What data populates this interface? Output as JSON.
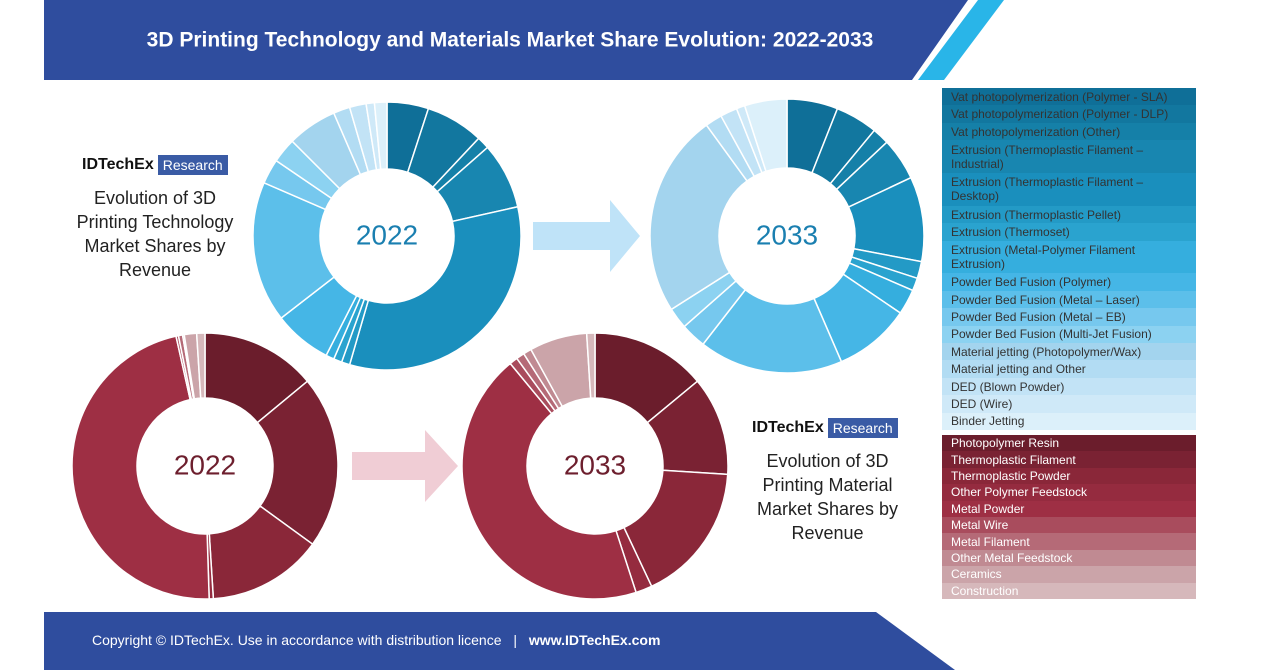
{
  "header": {
    "title": "3D Printing Technology and Materials Market Share Evolution: 2022-2033"
  },
  "footer": {
    "notice": "Copyright © IDTechEx. Use in accordance with distribution licence",
    "separator": "|",
    "url": "www.IDTechEx.com"
  },
  "chart_data": [
    {
      "type": "donut",
      "brand": "IDTechEx",
      "brand_tag": "Research",
      "caption": "Evolution of 3D Printing Technology Market Shares by Revenue",
      "categories": [
        "Vat photopolymerization (Polymer - SLA)",
        "Vat photopolymerization (Polymer - DLP)",
        "Vat photopolymerization (Other)",
        "Extrusion (Thermoplastic Filament – Industrial)",
        "Extrusion (Thermoplastic Filament – Desktop)",
        "Extrusion (Thermoplastic Pellet)",
        "Extrusion (Thermoset)",
        "Extrusion (Metal-Polymer Filament Extrusion)",
        "Powder Bed Fusion (Polymer)",
        "Powder Bed Fusion  (Metal – Laser)",
        "Powder Bed Fusion  (Metal – EB)",
        "Powder Bed Fusion  (Multi-Jet Fusion)",
        "Material jetting (Photopolymer/Wax)",
        "Material jetting and Other",
        "DED (Blown Powder)",
        "DED (Wire)",
        "Binder Jetting"
      ],
      "colors": [
        "#0f6f98",
        "#12779f",
        "#1580a8",
        "#1886b0",
        "#1a8fbd",
        "#239ac6",
        "#2aa3cf",
        "#35aede",
        "#45b6e6",
        "#5cbfea",
        "#76c8ee",
        "#8cd2f1",
        "#a3d4ee",
        "#b2dcf3",
        "#c2e3f6",
        "#cfe9f8",
        "#dcf0fa"
      ],
      "series": [
        {
          "name": "2022",
          "values": [
            5,
            7,
            1.5,
            8,
            33,
            1,
            1,
            1,
            7,
            17,
            3,
            3,
            6,
            2,
            2,
            1,
            1.5
          ]
        },
        {
          "name": "2033",
          "values": [
            6,
            5,
            2,
            5,
            10,
            2,
            1.5,
            3,
            9,
            17,
            3,
            2.5,
            24,
            2,
            2,
            1,
            5
          ]
        }
      ]
    },
    {
      "type": "donut",
      "brand": "IDTechEx",
      "brand_tag": "Research",
      "caption": "Evolution of 3D Printing Material Market Shares by Revenue",
      "categories": [
        "Photopolymer Resin",
        "Thermoplastic Filament",
        "Thermoplastic Powder",
        "Other Polymer Feedstock",
        "Metal Powder",
        "Metal Wire",
        "Metal Filament",
        "Other Metal Feedstock",
        "Ceramics",
        "Construction"
      ],
      "colors": [
        "#6b1d2c",
        "#7a2233",
        "#8a2739",
        "#952b3f",
        "#9e2f44",
        "#a94c5d",
        "#b56a77",
        "#c08a92",
        "#cba4a9",
        "#d6b8bb"
      ],
      "series": [
        {
          "name": "2022",
          "values": [
            14,
            21,
            14,
            0.5,
            47,
            0.3,
            0.5,
            0.2,
            1.5,
            1
          ]
        },
        {
          "name": "2033",
          "values": [
            14,
            12,
            17,
            2,
            44,
            1,
            1,
            1,
            7,
            1
          ]
        }
      ]
    }
  ]
}
